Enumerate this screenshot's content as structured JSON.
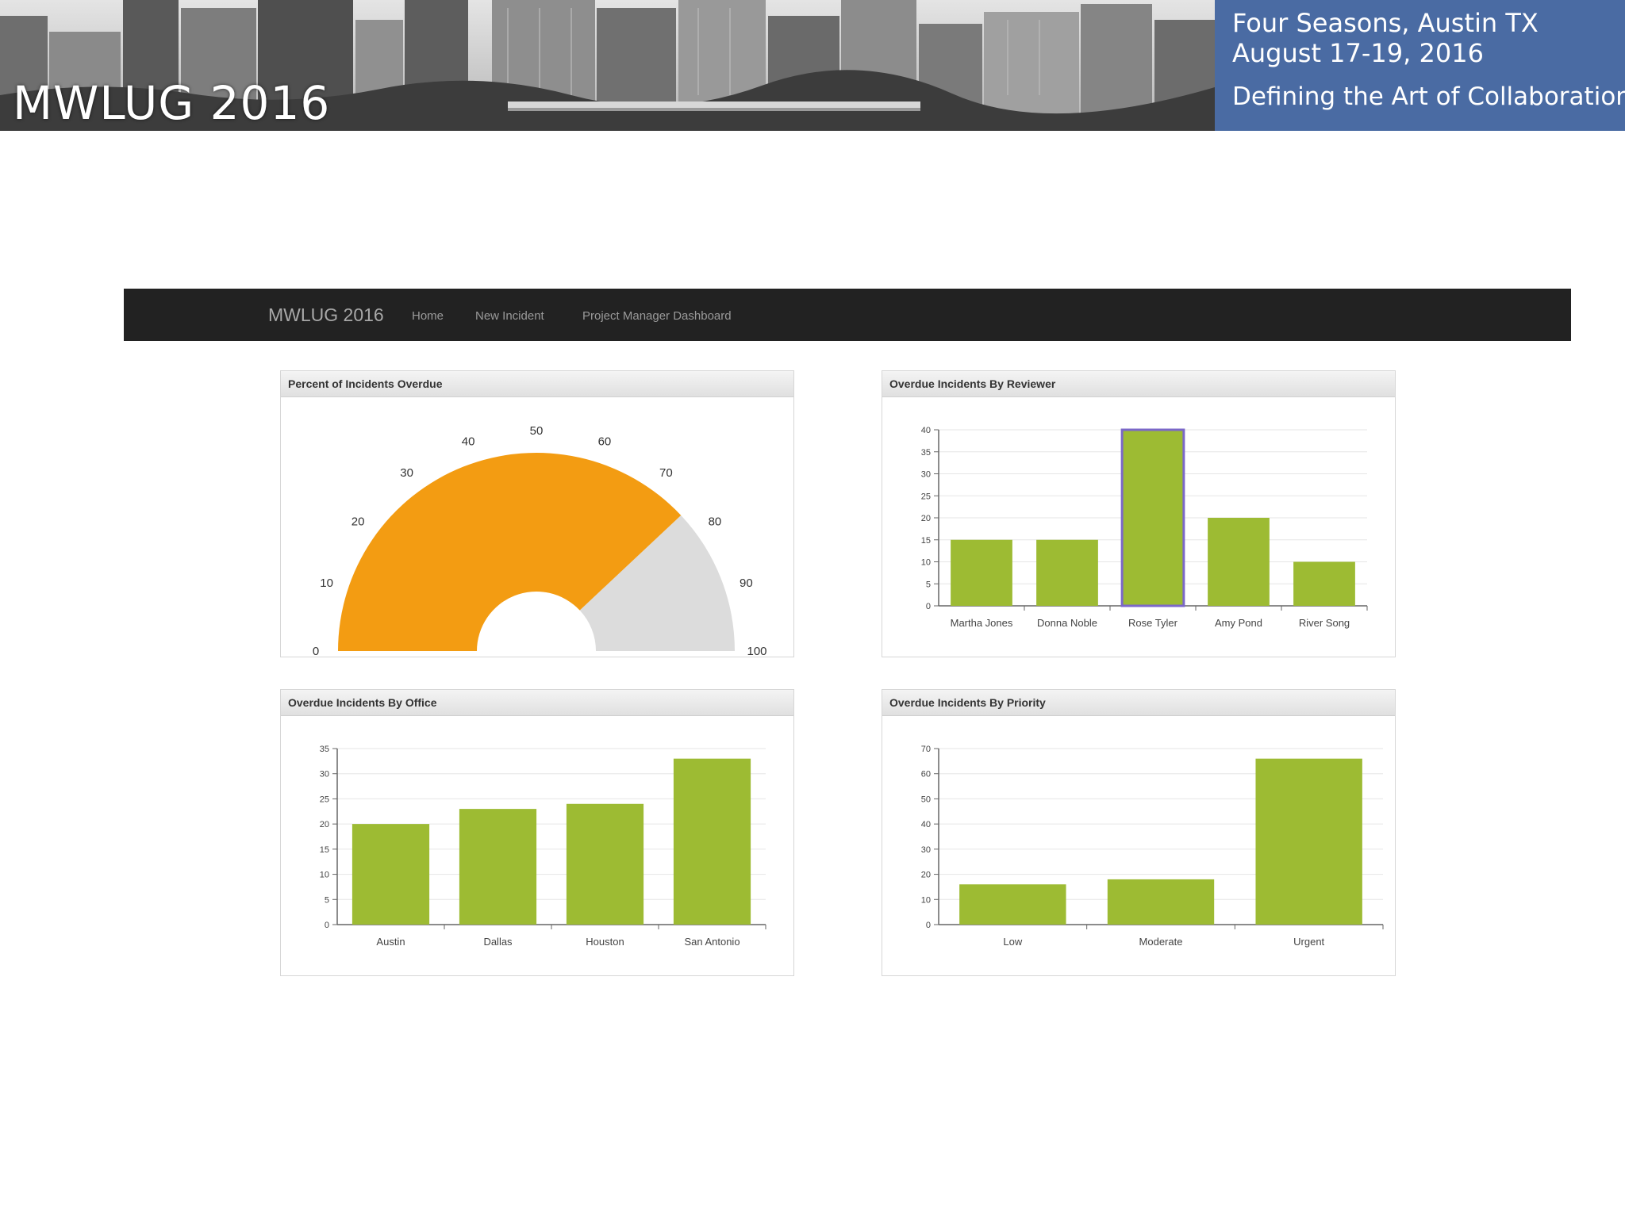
{
  "banner": {
    "title": "MWLUG 2016",
    "location": "Four Seasons, Austin TX",
    "dates": "August 17-19, 2016",
    "tagline": "Defining the Art of Collaboration",
    "info_color": "#4a6ba3"
  },
  "navbar": {
    "brand": "MWLUG 2016",
    "links": [
      "Home",
      "New Incident",
      "Project Manager Dashboard"
    ]
  },
  "panels": {
    "gauge": {
      "title": "Percent of Incidents Overdue"
    },
    "reviewer": {
      "title": "Overdue Incidents By Reviewer"
    },
    "office": {
      "title": "Overdue Incidents By Office"
    },
    "priority": {
      "title": "Overdue Incidents By Priority"
    }
  },
  "colors": {
    "bar": "#9dbb33",
    "gauge_fill": "#f39c12",
    "gauge_track": "#dcdcdc",
    "highlight": "#7b68c8"
  },
  "chart_data": [
    {
      "type": "gauge",
      "title": "Percent of Incidents Overdue",
      "value": 76,
      "min": 0,
      "max": 100,
      "ticks": [
        0,
        10,
        20,
        30,
        40,
        50,
        60,
        70,
        80,
        90,
        100
      ]
    },
    {
      "type": "bar",
      "title": "Overdue Incidents By Reviewer",
      "categories": [
        "Martha Jones",
        "Donna Noble",
        "Rose Tyler",
        "Amy Pond",
        "River Song"
      ],
      "values": [
        15,
        15,
        40,
        20,
        10
      ],
      "ylim": [
        0,
        40
      ],
      "yticks": [
        0,
        5,
        10,
        15,
        20,
        25,
        30,
        35,
        40
      ],
      "highlighted": "Rose Tyler",
      "grid": true
    },
    {
      "type": "bar",
      "title": "Overdue Incidents By Office",
      "categories": [
        "Austin",
        "Dallas",
        "Houston",
        "San Antonio"
      ],
      "values": [
        20,
        23,
        24,
        33
      ],
      "ylim": [
        0,
        35
      ],
      "yticks": [
        0,
        5,
        10,
        15,
        20,
        25,
        30,
        35
      ],
      "grid": true
    },
    {
      "type": "bar",
      "title": "Overdue Incidents By Priority",
      "categories": [
        "Low",
        "Moderate",
        "Urgent"
      ],
      "values": [
        16,
        18,
        66
      ],
      "ylim": [
        0,
        70
      ],
      "yticks": [
        0,
        10,
        20,
        30,
        40,
        50,
        60,
        70
      ],
      "grid": true
    }
  ]
}
